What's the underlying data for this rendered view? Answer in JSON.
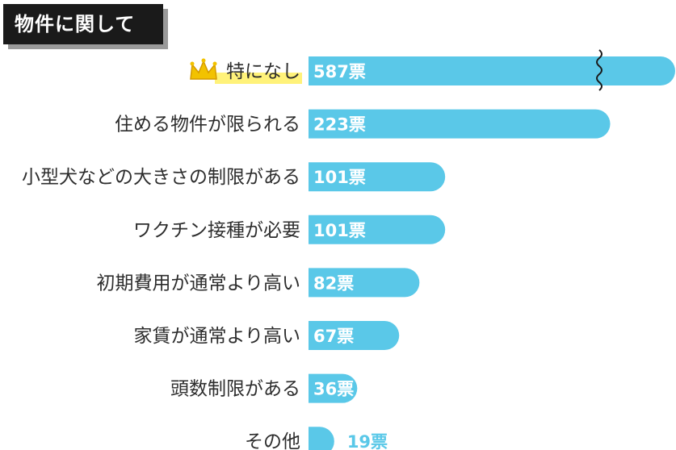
{
  "header": {
    "title": "物件に関して"
  },
  "colors": {
    "bar": "#5ac8e8",
    "highlight": "#fff27a",
    "crown": "#f2c200",
    "value_on_bar": "#ffffff",
    "value_off_bar": "#5ac8e8"
  },
  "chart_data": {
    "type": "bar",
    "orientation": "horizontal",
    "categories": [
      "特になし",
      "住める物件が限られる",
      "小型犬などの大きさの制限がある",
      "ワクチン接種が必要",
      "初期費用が通常より高い",
      "家賃が通常より高い",
      "頭数制限がある",
      "その他"
    ],
    "values": [
      587,
      223,
      101,
      101,
      82,
      67,
      36,
      19
    ],
    "value_labels": [
      "587票",
      "223票",
      "101票",
      "101票",
      "82票",
      "67票",
      "36票",
      "19票"
    ],
    "unit": "票",
    "axis_break_on_first_bar": true,
    "highlight_first_category": true,
    "first_category_icon": "crown-icon"
  }
}
